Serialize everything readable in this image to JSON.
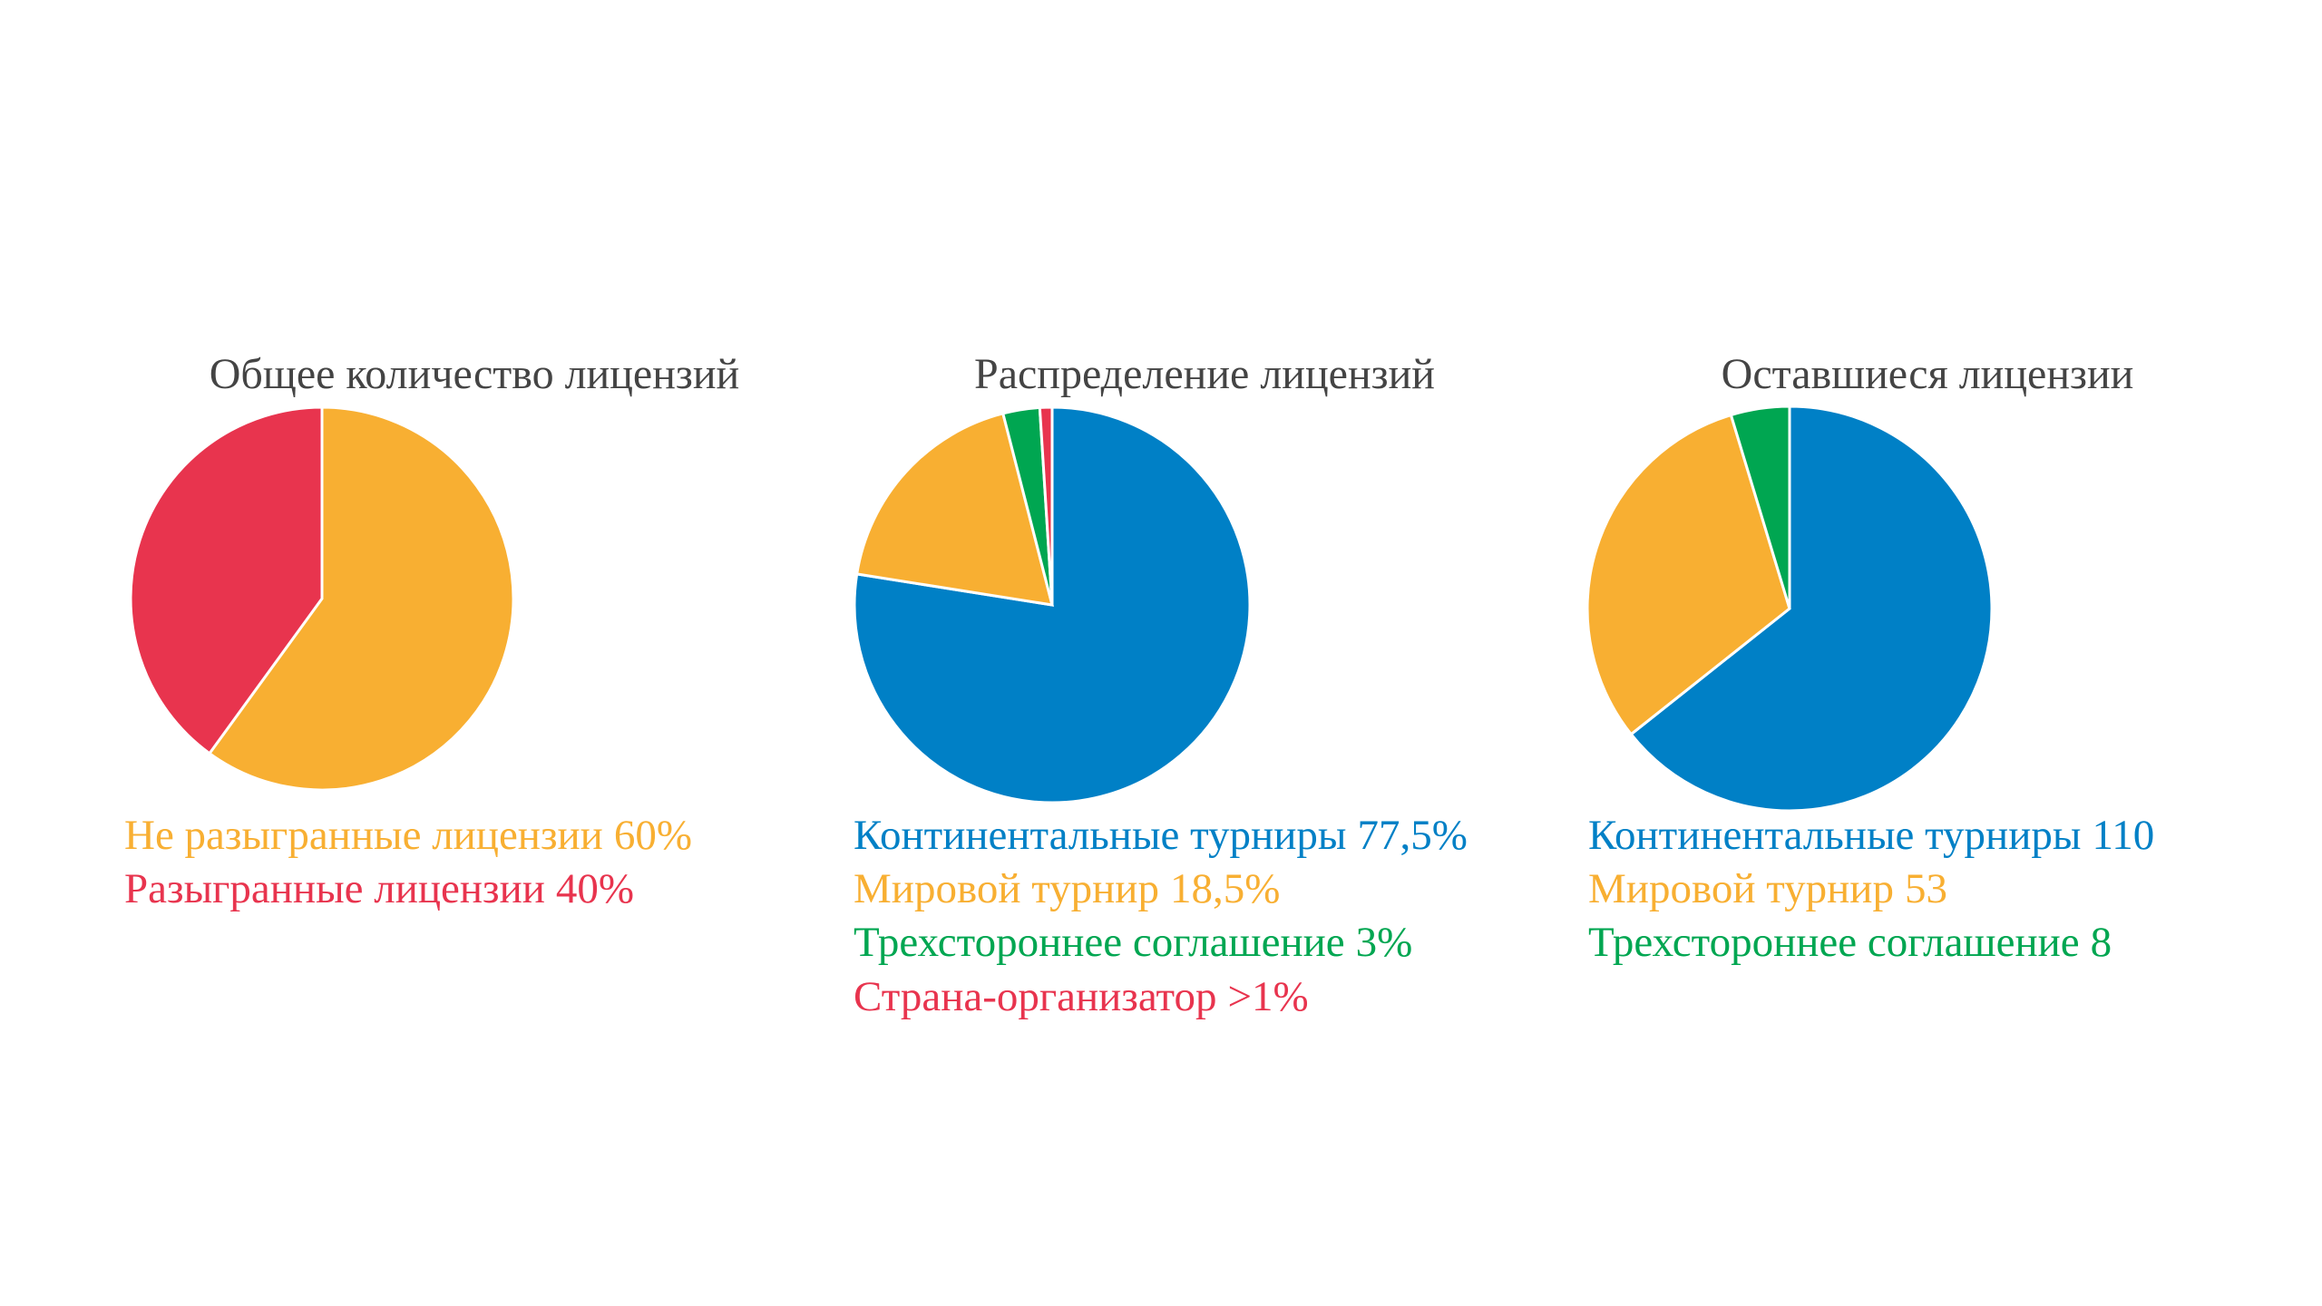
{
  "chart_data": [
    {
      "type": "pie",
      "title": "Общее количество лицензий",
      "categories": [
        "Не разыгранные лицензии",
        "Разыгранные лицензии"
      ],
      "values": [
        60,
        40
      ],
      "value_labels": [
        "60%",
        "40%"
      ],
      "colors": [
        "#F8AF32",
        "#E8344E"
      ]
    },
    {
      "type": "pie",
      "title": "Распределение лицензий",
      "categories": [
        "Континентальные турниры",
        "Мировой турнир",
        "Трехстороннее соглашение",
        "Страна-организатор"
      ],
      "values": [
        77.5,
        18.5,
        3,
        1
      ],
      "value_labels": [
        "77,5%",
        "18,5%",
        "3%",
        ">1%"
      ],
      "colors": [
        "#0080C6",
        "#F8AF32",
        "#00A651",
        "#E8344E"
      ]
    },
    {
      "type": "pie",
      "title": "Оставшиеся лицензии",
      "categories": [
        "Континентальные турниры",
        "Мировой турнир",
        "Трехстороннее соглашение"
      ],
      "values": [
        110,
        53,
        8
      ],
      "colors": [
        "#0080C6",
        "#F8AF32",
        "#00A651"
      ]
    }
  ]
}
